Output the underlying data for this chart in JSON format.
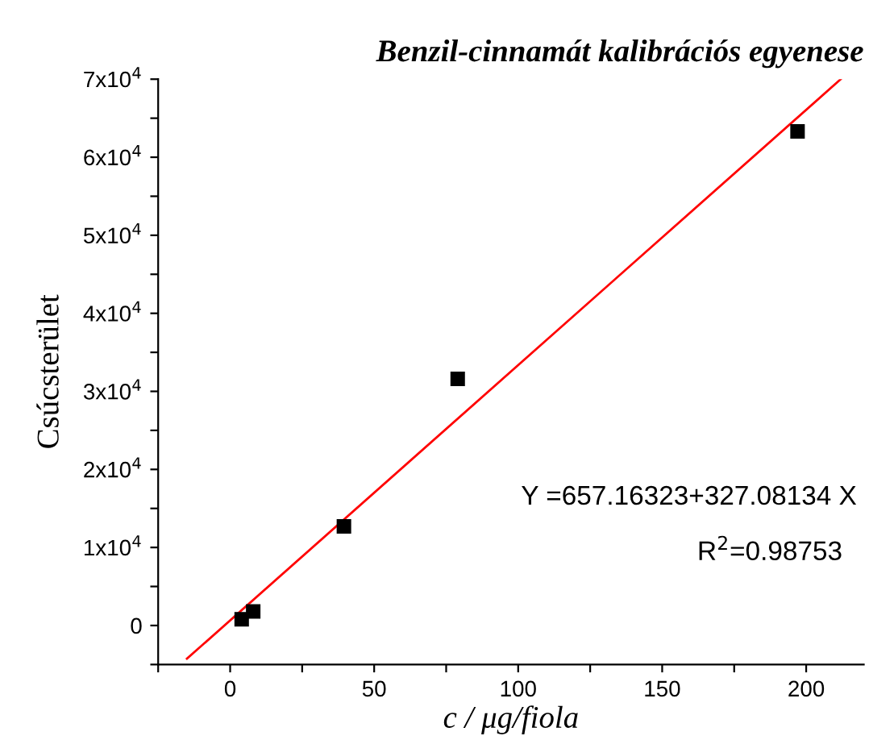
{
  "chart_data": {
    "type": "scatter",
    "title": "Benzil-cinnamát kalibrációs egyenese",
    "xlabel": "c / μg/fiola",
    "ylabel": "Csúcsterület",
    "series": [
      {
        "color": "#000000",
        "marker": "square",
        "x": [
          4,
          8,
          39.5,
          79,
          197
        ],
        "values": [
          800,
          1800,
          12700,
          31600,
          63300
        ]
      },
      {
        "type": "line",
        "color": "#ff0000",
        "marker": "none",
        "line_style": "solid",
        "x": [
          -15,
          212
        ],
        "values": [
          -4250,
          70000
        ]
      }
    ],
    "annotations": [
      "Y =657.16323+327.08134 X",
      "R$^{2}$=0.98753"
    ],
    "xlim": [
      -25,
      220
    ],
    "xticks": [
      0,
      50,
      100,
      150,
      200,
      {
        "value": -25,
        "label": null
      },
      {
        "value": 25,
        "label": null
      },
      {
        "value": 75,
        "label": null
      },
      {
        "value": 125,
        "label": null
      },
      {
        "value": 175,
        "label": null
      }
    ],
    "ylim": [
      -5000,
      70000
    ],
    "yticks": [
      {
        "value": 0,
        "label": "0"
      },
      {
        "value": 10000,
        "label": "1x10$^{4}$"
      },
      {
        "value": 20000,
        "label": "2x10$^{4}$"
      },
      {
        "value": 30000,
        "label": "3x10$^{4}$"
      },
      {
        "value": 40000,
        "label": "4x10$^{4}$"
      },
      {
        "value": 50000,
        "label": "5x10$^{4}$"
      },
      {
        "value": 60000,
        "label": "6x10$^{4}$"
      },
      {
        "value": 70000,
        "label": "7x10$^{4}$"
      },
      {
        "value": -5000,
        "label": null
      },
      {
        "value": 5000,
        "label": null
      },
      {
        "value": 15000,
        "label": null
      },
      {
        "value": 25000,
        "label": null
      },
      {
        "value": 35000,
        "label": null
      },
      {
        "value": 45000,
        "label": null
      },
      {
        "value": 55000,
        "label": null
      },
      {
        "value": 65000,
        "label": null
      }
    ],
    "grid": false,
    "legend": false
  }
}
